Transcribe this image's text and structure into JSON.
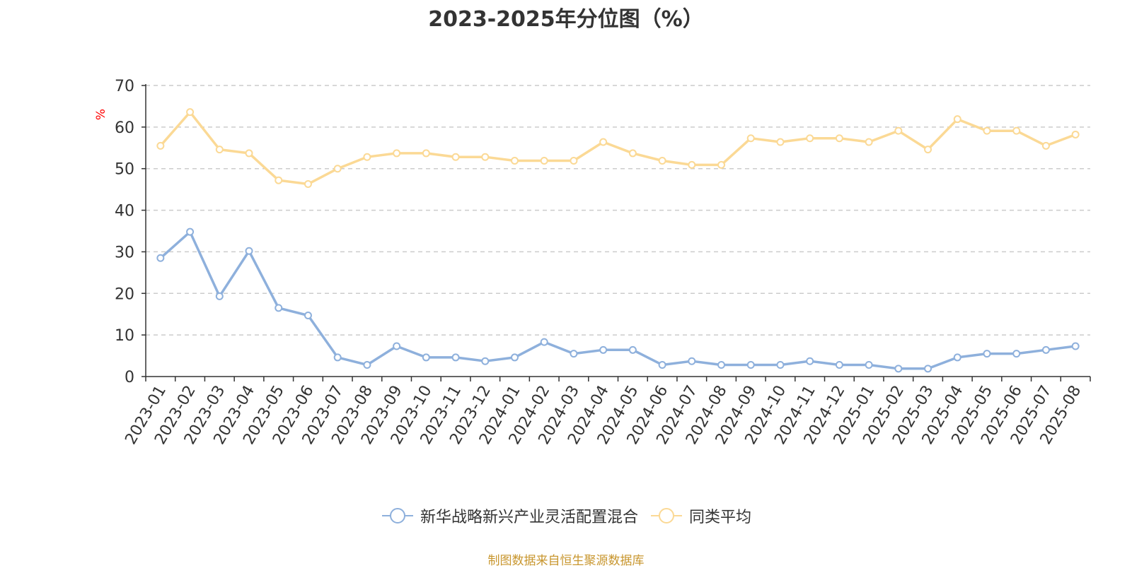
{
  "title": "2023-2025年分位图（%）",
  "source_note": "制图数据来自恒生聚源数据库",
  "colors": {
    "series_fund": "#8eb0dc",
    "series_avg": "#fbd995",
    "ylabel": "#ff0000",
    "axis": "#333333",
    "grid": "#cccccc",
    "source_note": "#c8962e"
  },
  "chart_data": {
    "type": "line",
    "ylabel": "%",
    "ylim": [
      0,
      70
    ],
    "yticks": [
      0,
      10,
      20,
      30,
      40,
      50,
      60,
      70
    ],
    "grid": true,
    "legend_position": "bottom-center",
    "categories": [
      "2023-01",
      "2023-02",
      "2023-03",
      "2023-04",
      "2023-05",
      "2023-06",
      "2023-07",
      "2023-08",
      "2023-09",
      "2023-10",
      "2023-11",
      "2023-12",
      "2024-01",
      "2024-02",
      "2024-03",
      "2024-04",
      "2024-05",
      "2024-06",
      "2024-07",
      "2024-08",
      "2024-09",
      "2024-10",
      "2024-11",
      "2024-12",
      "2025-01",
      "2025-02",
      "2025-03",
      "2025-04",
      "2025-05",
      "2025-06",
      "2025-07",
      "2025-08"
    ],
    "series": [
      {
        "name": "新华战略新兴产业灵活配置混合",
        "values": [
          28.5,
          34.8,
          19.3,
          30.2,
          16.5,
          14.7,
          4.6,
          2.8,
          7.3,
          4.6,
          4.6,
          3.7,
          4.6,
          8.3,
          5.5,
          6.4,
          6.4,
          2.8,
          3.7,
          2.8,
          2.8,
          2.8,
          3.7,
          2.8,
          2.8,
          1.9,
          1.9,
          4.6,
          5.5,
          5.5,
          6.4,
          7.3
        ]
      },
      {
        "name": "同类平均",
        "values": [
          55.5,
          63.6,
          54.6,
          53.7,
          47.2,
          46.3,
          50.0,
          52.8,
          53.7,
          53.7,
          52.8,
          52.8,
          51.9,
          51.9,
          51.9,
          56.4,
          53.7,
          51.9,
          50.9,
          50.9,
          57.3,
          56.4,
          57.3,
          57.3,
          56.4,
          59.1,
          54.6,
          61.9,
          59.1,
          59.1,
          55.5,
          58.2
        ]
      }
    ]
  }
}
